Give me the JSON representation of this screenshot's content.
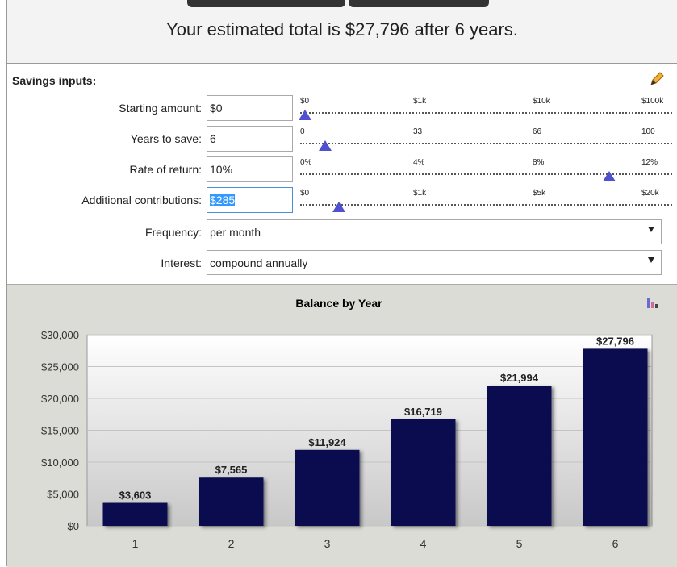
{
  "header": {
    "title": "Your estimated total is $27,796 after 6 years."
  },
  "inputs": {
    "title": "Savings inputs:",
    "fields": [
      {
        "label": "Starting amount:",
        "value": "$0",
        "scale": [
          "$0",
          "$1k",
          "$10k",
          "$100k"
        ]
      },
      {
        "label": "Years to save:",
        "value": "6",
        "scale": [
          "0",
          "33",
          "66",
          "100"
        ]
      },
      {
        "label": "Rate of return:",
        "value": "10%",
        "scale": [
          "0%",
          "4%",
          "8%",
          "12%"
        ]
      },
      {
        "label": "Additional contributions:",
        "value": "$285",
        "scale": [
          "$0",
          "$1k",
          "$5k",
          "$20k"
        ]
      }
    ],
    "selects": [
      {
        "label": "Frequency:",
        "value": "per month"
      },
      {
        "label": "Interest:",
        "value": "compound annually"
      }
    ]
  },
  "chart_data": {
    "type": "bar",
    "title": "Balance by Year",
    "categories": [
      "1",
      "2",
      "3",
      "4",
      "5",
      "6"
    ],
    "values": [
      3603,
      7565,
      11924,
      16719,
      21994,
      27796
    ],
    "value_labels": [
      "$3,603",
      "$7,565",
      "$11,924",
      "$16,719",
      "$21,994",
      "$27,796"
    ],
    "color": "#0b0b4f",
    "ylim": [
      0,
      30000
    ],
    "yticks": [
      {
        "value": 0,
        "label": "$0"
      },
      {
        "value": 5000,
        "label": "$5,000"
      },
      {
        "value": 10000,
        "label": "$10,000"
      },
      {
        "value": 15000,
        "label": "$15,000"
      },
      {
        "value": 20000,
        "label": "$20,000"
      },
      {
        "value": 25000,
        "label": "$25,000"
      },
      {
        "value": 30000,
        "label": "$30,000"
      }
    ],
    "grid": true
  }
}
